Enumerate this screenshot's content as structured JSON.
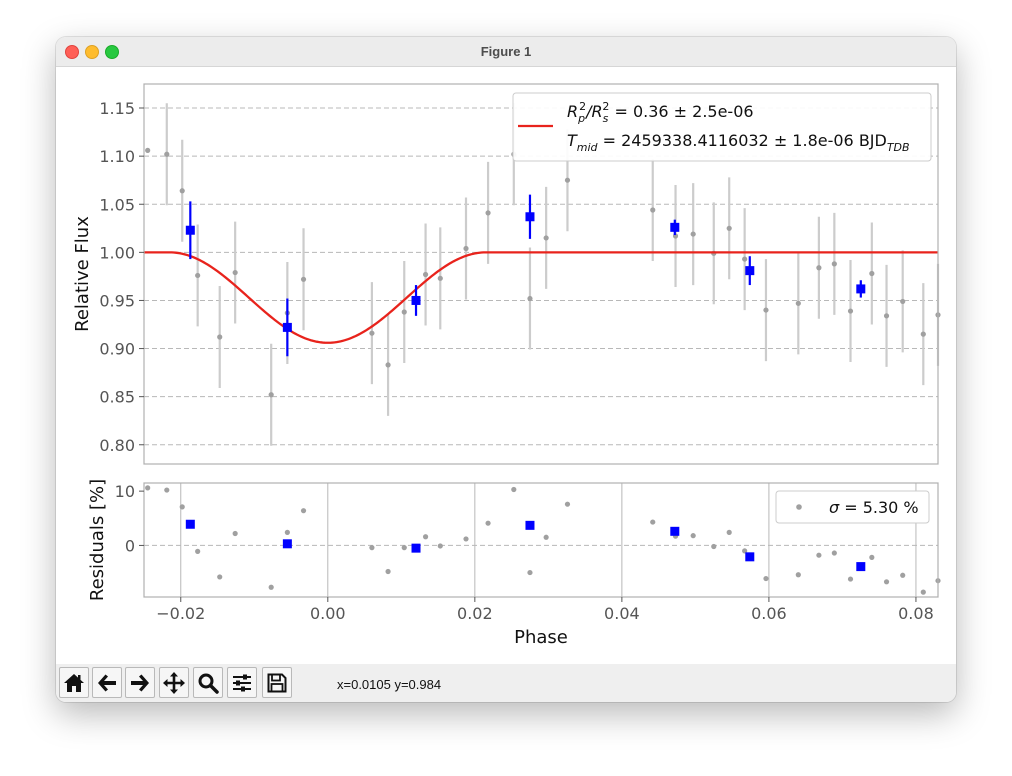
{
  "window": {
    "title": "Figure 1"
  },
  "toolbar": {
    "buttons": [
      {
        "name": "home-icon",
        "label": "Home"
      },
      {
        "name": "back-arrow-icon",
        "label": "Back"
      },
      {
        "name": "forward-arrow-icon",
        "label": "Forward"
      },
      {
        "name": "pan-icon",
        "label": "Pan"
      },
      {
        "name": "zoom-icon",
        "label": "Zoom"
      },
      {
        "name": "configure-subplots-icon",
        "label": "Subplots"
      },
      {
        "name": "save-icon",
        "label": "Save"
      }
    ],
    "coords_text": "x=0.0105 y=0.984"
  },
  "colors": {
    "model": "#e8231c",
    "binned": "#0000ff",
    "raw": "#a0a0a0",
    "errorbar": "#cccccc"
  },
  "chart_data": [
    {
      "type": "scatter",
      "name": "lightcurve",
      "xlabel": "",
      "ylabel": "Relative Flux",
      "xlim": [
        -0.025,
        0.083
      ],
      "ylim": [
        0.78,
        1.175
      ],
      "yticks": [
        0.8,
        0.85,
        0.9,
        0.95,
        1.0,
        1.05,
        1.1,
        1.15
      ],
      "ytick_labels": [
        "0.80",
        "0.85",
        "0.90",
        "0.95",
        "1.00",
        "1.05",
        "1.10",
        "1.15"
      ],
      "grid": "horizontal dashed",
      "legend": {
        "placement": "top-right",
        "label_line1": "R",
        "label_sub1": "p",
        "label_sup1": "2",
        "label_slash": "/R",
        "label_sub2": "s",
        "label_sup2": "2",
        "label_rest1": " = 0.36 ± 2.5e-06",
        "label_T": "T",
        "label_Tsub": "mid",
        "label_rest2": " = 2459338.4116032 ± 1.8e-06 BJD",
        "label_Tdb": "TDB"
      },
      "model": {
        "baseline": 1.0,
        "depth": 0.094,
        "t_center": 0.0,
        "ingress_start": -0.0215,
        "egress_end": 0.0215
      },
      "raw_points": [
        {
          "x": -0.0245,
          "y": 1.106,
          "err": 0.0
        },
        {
          "x": -0.0219,
          "y": 1.102,
          "err": 0.053
        },
        {
          "x": -0.0198,
          "y": 1.064,
          "err": 0.053
        },
        {
          "x": -0.0177,
          "y": 0.976,
          "err": 0.053
        },
        {
          "x": -0.0147,
          "y": 0.912,
          "err": 0.053
        },
        {
          "x": -0.0126,
          "y": 0.979,
          "err": 0.053
        },
        {
          "x": -0.0077,
          "y": 0.852,
          "err": 0.053
        },
        {
          "x": -0.0055,
          "y": 0.937,
          "err": 0.053
        },
        {
          "x": -0.0033,
          "y": 0.972,
          "err": 0.053
        },
        {
          "x": 0.006,
          "y": 0.916,
          "err": 0.053
        },
        {
          "x": 0.0082,
          "y": 0.883,
          "err": 0.053
        },
        {
          "x": 0.0104,
          "y": 0.938,
          "err": 0.053
        },
        {
          "x": 0.0133,
          "y": 0.977,
          "err": 0.053
        },
        {
          "x": 0.0153,
          "y": 0.973,
          "err": 0.053
        },
        {
          "x": 0.0188,
          "y": 1.004,
          "err": 0.053
        },
        {
          "x": 0.0218,
          "y": 1.041,
          "err": 0.053
        },
        {
          "x": 0.0253,
          "y": 1.102,
          "err": 0.053
        },
        {
          "x": 0.0275,
          "y": 0.952,
          "err": 0.053
        },
        {
          "x": 0.0297,
          "y": 1.015,
          "err": 0.053
        },
        {
          "x": 0.0326,
          "y": 1.075,
          "err": 0.053
        },
        {
          "x": 0.0442,
          "y": 1.044,
          "err": 0.053
        },
        {
          "x": 0.0473,
          "y": 1.017,
          "err": 0.053
        },
        {
          "x": 0.0497,
          "y": 1.019,
          "err": 0.053
        },
        {
          "x": 0.0525,
          "y": 0.999,
          "err": 0.053
        },
        {
          "x": 0.0546,
          "y": 1.025,
          "err": 0.053
        },
        {
          "x": 0.0567,
          "y": 0.993,
          "err": 0.053
        },
        {
          "x": 0.0596,
          "y": 0.94,
          "err": 0.053
        },
        {
          "x": 0.064,
          "y": 0.947,
          "err": 0.053
        },
        {
          "x": 0.0668,
          "y": 0.984,
          "err": 0.053
        },
        {
          "x": 0.0689,
          "y": 0.988,
          "err": 0.053
        },
        {
          "x": 0.0711,
          "y": 0.939,
          "err": 0.053
        },
        {
          "x": 0.074,
          "y": 0.978,
          "err": 0.053
        },
        {
          "x": 0.076,
          "y": 0.934,
          "err": 0.053
        },
        {
          "x": 0.0782,
          "y": 0.949,
          "err": 0.053
        },
        {
          "x": 0.081,
          "y": 0.915,
          "err": 0.053
        },
        {
          "x": 0.083,
          "y": 0.935,
          "err": 0.053
        }
      ],
      "binned_points": [
        {
          "x": -0.0187,
          "y": 1.023,
          "err": 0.03
        },
        {
          "x": -0.0055,
          "y": 0.922,
          "err": 0.03
        },
        {
          "x": 0.012,
          "y": 0.95,
          "err": 0.016
        },
        {
          "x": 0.0275,
          "y": 1.037,
          "err": 0.023
        },
        {
          "x": 0.0472,
          "y": 1.026,
          "err": 0.008
        },
        {
          "x": 0.0574,
          "y": 0.981,
          "err": 0.015
        },
        {
          "x": 0.0725,
          "y": 0.962,
          "err": 0.009
        }
      ]
    },
    {
      "type": "scatter",
      "name": "residuals",
      "xlabel": "Phase",
      "ylabel": "Residuals [%]",
      "xlim": [
        -0.025,
        0.083
      ],
      "ylim": [
        -9.5,
        11.5
      ],
      "xticks": [
        -0.02,
        0.0,
        0.02,
        0.04,
        0.06,
        0.08
      ],
      "xtick_labels": [
        "−0.02",
        "0.00",
        "0.02",
        "0.04",
        "0.06",
        "0.08"
      ],
      "yticks": [
        10,
        0
      ],
      "ytick_labels": [
        "10",
        "0"
      ],
      "legend": {
        "placement": "top-right",
        "sigma_symbol": "σ",
        "label": " = 5.30 %"
      },
      "raw_points": [
        {
          "x": -0.0245,
          "y": 10.6
        },
        {
          "x": -0.0219,
          "y": 10.2
        },
        {
          "x": -0.0198,
          "y": 7.1
        },
        {
          "x": -0.0177,
          "y": -1.1
        },
        {
          "x": -0.0147,
          "y": -5.8
        },
        {
          "x": -0.0126,
          "y": 2.2
        },
        {
          "x": -0.0077,
          "y": -7.7
        },
        {
          "x": -0.0055,
          "y": 2.4
        },
        {
          "x": -0.0033,
          "y": 6.4
        },
        {
          "x": 0.006,
          "y": -0.4
        },
        {
          "x": 0.0082,
          "y": -4.8
        },
        {
          "x": 0.0104,
          "y": -0.4
        },
        {
          "x": 0.0133,
          "y": 1.6
        },
        {
          "x": 0.0153,
          "y": -0.1
        },
        {
          "x": 0.0188,
          "y": 1.2
        },
        {
          "x": 0.0218,
          "y": 4.1
        },
        {
          "x": 0.0253,
          "y": 10.3
        },
        {
          "x": 0.0275,
          "y": -5.0
        },
        {
          "x": 0.0297,
          "y": 1.5
        },
        {
          "x": 0.0326,
          "y": 7.6
        },
        {
          "x": 0.0442,
          "y": 4.3
        },
        {
          "x": 0.0473,
          "y": 1.7
        },
        {
          "x": 0.0497,
          "y": 1.8
        },
        {
          "x": 0.0525,
          "y": -0.2
        },
        {
          "x": 0.0546,
          "y": 2.4
        },
        {
          "x": 0.0567,
          "y": -1.0
        },
        {
          "x": 0.0596,
          "y": -6.1
        },
        {
          "x": 0.064,
          "y": -5.4
        },
        {
          "x": 0.0668,
          "y": -1.8
        },
        {
          "x": 0.0689,
          "y": -1.4
        },
        {
          "x": 0.0711,
          "y": -6.2
        },
        {
          "x": 0.074,
          "y": -2.2
        },
        {
          "x": 0.076,
          "y": -6.7
        },
        {
          "x": 0.0782,
          "y": -5.5
        },
        {
          "x": 0.081,
          "y": -8.6
        },
        {
          "x": 0.083,
          "y": -6.5
        }
      ],
      "binned_points": [
        {
          "x": -0.0187,
          "y": 3.9
        },
        {
          "x": -0.0055,
          "y": 0.3
        },
        {
          "x": 0.012,
          "y": -0.5
        },
        {
          "x": 0.0275,
          "y": 3.7
        },
        {
          "x": 0.0472,
          "y": 2.6
        },
        {
          "x": 0.0574,
          "y": -2.1
        },
        {
          "x": 0.0725,
          "y": -3.9
        }
      ]
    }
  ]
}
